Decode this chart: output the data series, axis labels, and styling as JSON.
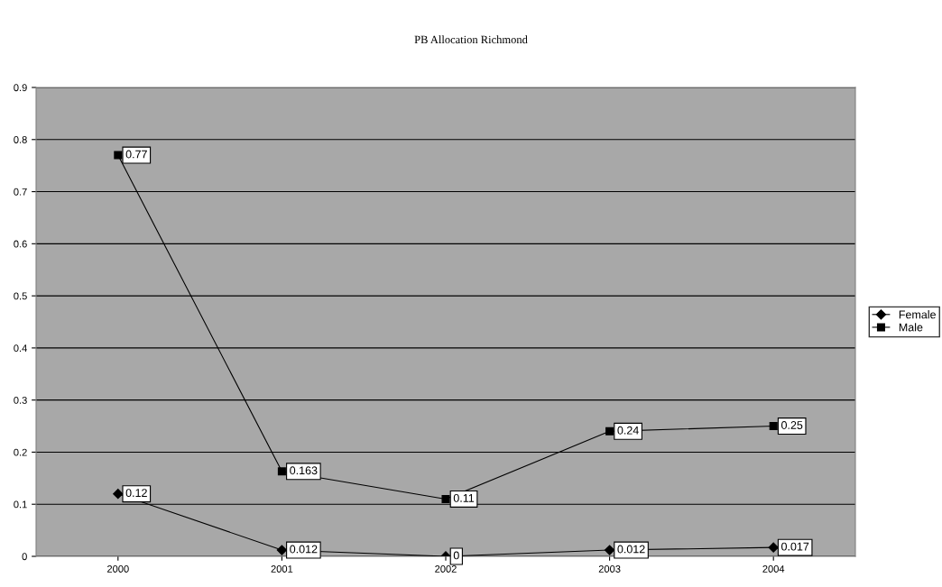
{
  "chart_data": {
    "type": "line",
    "title": "PB Allocation Richmond",
    "categories": [
      "2000",
      "2001",
      "2002",
      "2003",
      "2004"
    ],
    "series": [
      {
        "name": "Female",
        "color": "#000000",
        "marker": "diamond",
        "values": [
          0.12,
          0.012,
          0,
          0.012,
          0.017
        ]
      },
      {
        "name": "Male",
        "color": "#000000",
        "marker": "square",
        "values": [
          0.77,
          0.163,
          0.11,
          0.24,
          0.25
        ]
      }
    ],
    "ylim": [
      0,
      0.9
    ],
    "yticks": [
      0,
      0.1,
      0.2,
      0.3,
      0.4,
      0.5,
      0.6,
      0.7,
      0.8,
      0.9
    ],
    "grid": "y",
    "legend": "right",
    "data_labels": true,
    "line_style": "solid"
  }
}
